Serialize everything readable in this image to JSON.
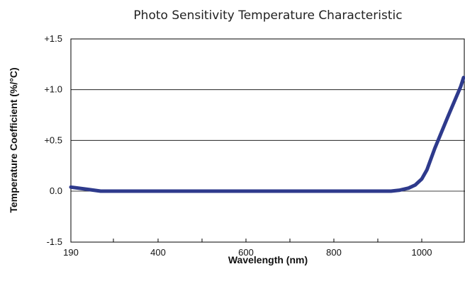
{
  "chart_data": {
    "type": "line",
    "title": "Photo Sensitivity Temperature Characteristic",
    "xlabel": "Wavelength (nm)",
    "ylabel": "Temperature Coefficient (%/°C)",
    "x_ticks": [
      {
        "value": 190,
        "label": "190"
      },
      {
        "value": 400,
        "label": "400"
      },
      {
        "value": 600,
        "label": "600"
      },
      {
        "value": 800,
        "label": "800"
      },
      {
        "value": 1000,
        "label": "1000"
      }
    ],
    "x_minor_ticks": [
      290,
      500,
      700,
      900
    ],
    "y_ticks": [
      {
        "value": -1.5,
        "label": "-1.5"
      },
      {
        "value": 0.0,
        "label": "0.0"
      },
      {
        "value": 0.5,
        "label": "+0.5"
      },
      {
        "value": 1.0,
        "label": "+1.0"
      },
      {
        "value": 1.5,
        "label": "+1.5"
      }
    ],
    "grid": "horizontal",
    "line_color": "#2e3a8c",
    "series": [
      {
        "x": [
          190,
          225,
          260,
          400,
          600,
          800,
          930,
          950,
          970,
          985,
          1000,
          1012,
          1030,
          1060,
          1090,
          1100
        ],
        "y": [
          0.04,
          0.02,
          0.0,
          0.0,
          0.0,
          0.0,
          0.0,
          0.01,
          0.03,
          0.06,
          0.12,
          0.21,
          0.42,
          0.73,
          1.03,
          1.12
        ]
      }
    ]
  }
}
